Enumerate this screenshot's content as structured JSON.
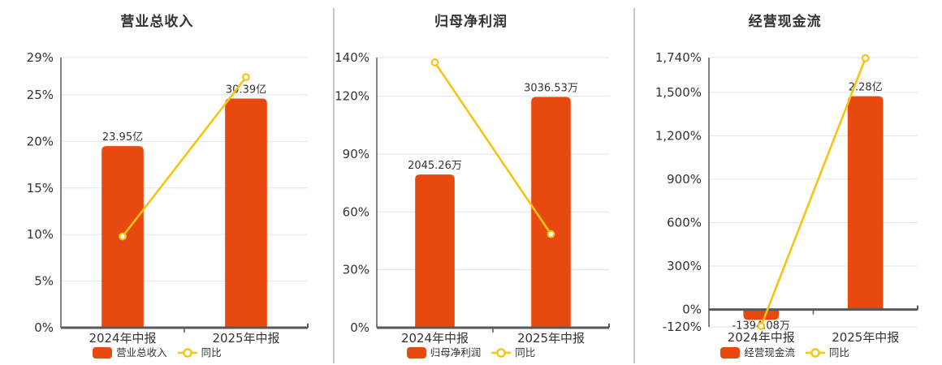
{
  "colors": {
    "bar": "#E8490F",
    "line": "#F8C410",
    "marker_fill": "#ffffff",
    "grid": "#DEE4F1",
    "axis": "#55595F",
    "divider": "#C9C9C9",
    "text": "#333333"
  },
  "chart_data": [
    {
      "type": "bar+line",
      "title": "营业总收入",
      "categories": [
        "2024年中报",
        "2025年中报"
      ],
      "bar_series": {
        "name": "营业总收入",
        "value_labels": [
          "23.95亿",
          "30.39亿"
        ],
        "axis_values": [
          19.5,
          24.6
        ]
      },
      "line_series": {
        "name": "同比",
        "values": [
          9.8,
          26.9
        ],
        "unit": "%"
      },
      "yticks": {
        "values": [
          0,
          5,
          10,
          15,
          20,
          25,
          29
        ],
        "labels": [
          "0%",
          "5%",
          "10%",
          "15%",
          "20%",
          "25%",
          "29%"
        ]
      },
      "ylim": [
        0,
        29
      ],
      "xlabel": "",
      "ylabel": "",
      "grid": true,
      "legend_position": "bottom"
    },
    {
      "type": "bar+line",
      "title": "归母净利润",
      "categories": [
        "2024年中报",
        "2025年中报"
      ],
      "bar_series": {
        "name": "归母净利润",
        "value_labels": [
          "2045.26万",
          "3036.53万"
        ],
        "axis_values": [
          79.4,
          119.6
        ]
      },
      "line_series": {
        "name": "同比",
        "values": [
          137.5,
          48.5
        ],
        "unit": "%"
      },
      "yticks": {
        "values": [
          0,
          30,
          60,
          90,
          120,
          140
        ],
        "labels": [
          "0%",
          "30%",
          "60%",
          "90%",
          "120%",
          "140%"
        ]
      },
      "ylim": [
        0,
        140
      ],
      "xlabel": "",
      "ylabel": "",
      "grid": true,
      "legend_position": "bottom"
    },
    {
      "type": "bar+line",
      "title": "经营现金流",
      "categories": [
        "2024年中报",
        "2025年中报"
      ],
      "bar_series": {
        "name": "经营现金流",
        "value_labels": [
          "-1394.08万",
          "2.28亿"
        ],
        "axis_values": [
          -72,
          1473
        ]
      },
      "line_series": {
        "name": "同比",
        "values": [
          -114,
          1736
        ],
        "unit": "%"
      },
      "yticks": {
        "values": [
          -120,
          0,
          300,
          600,
          900,
          1200,
          1500,
          1740
        ],
        "labels": [
          "-120%",
          "0%",
          "300%",
          "600%",
          "900%",
          "1,200%",
          "1,500%",
          "1,740%"
        ]
      },
      "ylim": [
        -120,
        1740
      ],
      "xlabel": "",
      "ylabel": "",
      "grid": true,
      "legend_position": "bottom"
    }
  ]
}
